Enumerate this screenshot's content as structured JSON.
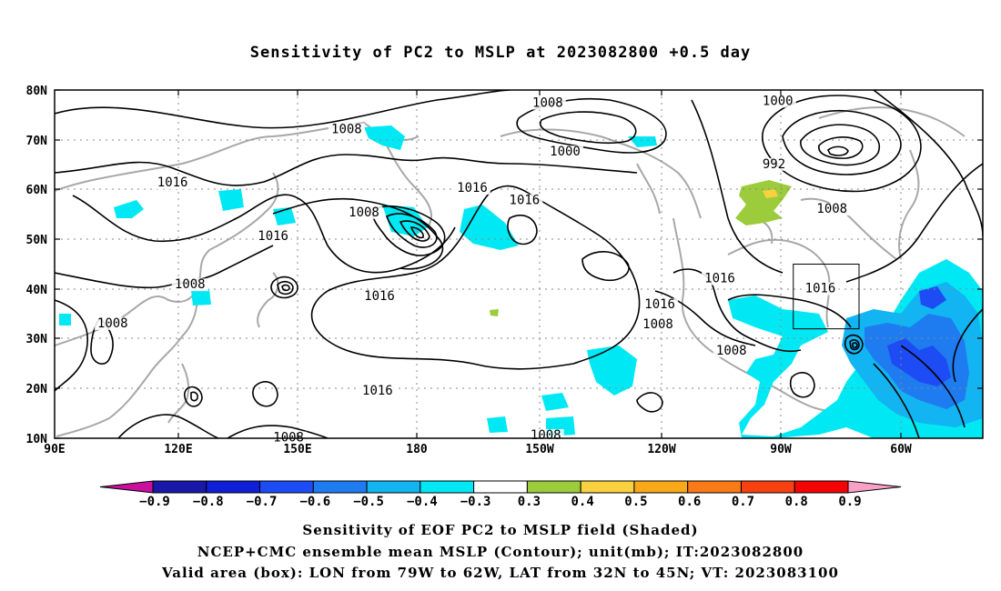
{
  "title": "Sensitivity of PC2 to MSLP at 2023082800 +0.5 day",
  "lat_ticks": [
    "80N",
    "70N",
    "60N",
    "50N",
    "40N",
    "30N",
    "20N",
    "10N"
  ],
  "lon_ticks": [
    "90E",
    "120E",
    "150E",
    "180",
    "150W",
    "120W",
    "90W",
    "60W"
  ],
  "contour_labels": [
    {
      "text": "1008",
      "lon": 165.5,
      "lat": 71.5
    },
    {
      "text": "1016",
      "lon": 120.5,
      "lat": 60.8
    },
    {
      "text": "1016",
      "lon": 146.5,
      "lat": 50.0
    },
    {
      "text": "1008",
      "lon": 170.0,
      "lat": 54.8
    },
    {
      "text": "1016",
      "lon": 174.0,
      "lat": 38.0
    },
    {
      "text": "1008",
      "lon": 125.0,
      "lat": 40.3
    },
    {
      "text": "1008",
      "lon": 105.0,
      "lat": 32.5
    },
    {
      "text": "1016",
      "lon": 173.5,
      "lat": 19.0
    },
    {
      "text": "1008",
      "lon": 150.5,
      "lat": 9.5
    },
    {
      "text": "1008",
      "lon": -142.5,
      "lat": 76.8
    },
    {
      "text": "1000",
      "lon": -138.0,
      "lat": 67.0
    },
    {
      "text": "1016",
      "lon": -162.0,
      "lat": 59.7
    },
    {
      "text": "1016",
      "lon": -148.5,
      "lat": 57.2
    },
    {
      "text": "1016",
      "lon": -113.5,
      "lat": 36.3
    },
    {
      "text": "1008",
      "lon": -114.0,
      "lat": 32.3
    },
    {
      "text": "1016",
      "lon": -98.0,
      "lat": 41.5
    },
    {
      "text": "1000",
      "lon": -83.0,
      "lat": 77.2
    },
    {
      "text": "992",
      "lon": -84.0,
      "lat": 64.5
    },
    {
      "text": "1008",
      "lon": -69.0,
      "lat": 55.5
    },
    {
      "text": "1016",
      "lon": -72.0,
      "lat": 39.5
    },
    {
      "text": "1008",
      "lon": -95.0,
      "lat": 27.0
    },
    {
      "text": "1008",
      "lon": -143.0,
      "lat": 10.0
    }
  ],
  "valid_box": {
    "lon_from": -79,
    "lon_to": -62,
    "lat_from": 32,
    "lat_to": 45
  },
  "colorbar": {
    "colors": [
      "#c8109c",
      "#1a18a8",
      "#0f1ed8",
      "#1d4cf4",
      "#1e7cf0",
      "#12b4f2",
      "#00e8f4",
      "#ffffff",
      "#9ccc3c",
      "#f8d040",
      "#f8a818",
      "#f87a18",
      "#f84010",
      "#f40404",
      "#f8a0c8"
    ],
    "labels": [
      "−0.9",
      "−0.8",
      "−0.7",
      "−0.6",
      "−0.5",
      "−0.4",
      "−0.3",
      "0.3",
      "0.4",
      "0.5",
      "0.6",
      "0.7",
      "0.8",
      "0.9"
    ]
  },
  "captions": {
    "line1": "Sensitivity of EOF PC2 to MSLP field (Shaded)",
    "line2": "NCEP+CMC ensemble mean MSLP (Contour); unit(mb); IT:2023082800",
    "line3": "Valid area (box): LON from 79W to 62W, LAT from 32N to 45N; VT: 2023083100"
  }
}
